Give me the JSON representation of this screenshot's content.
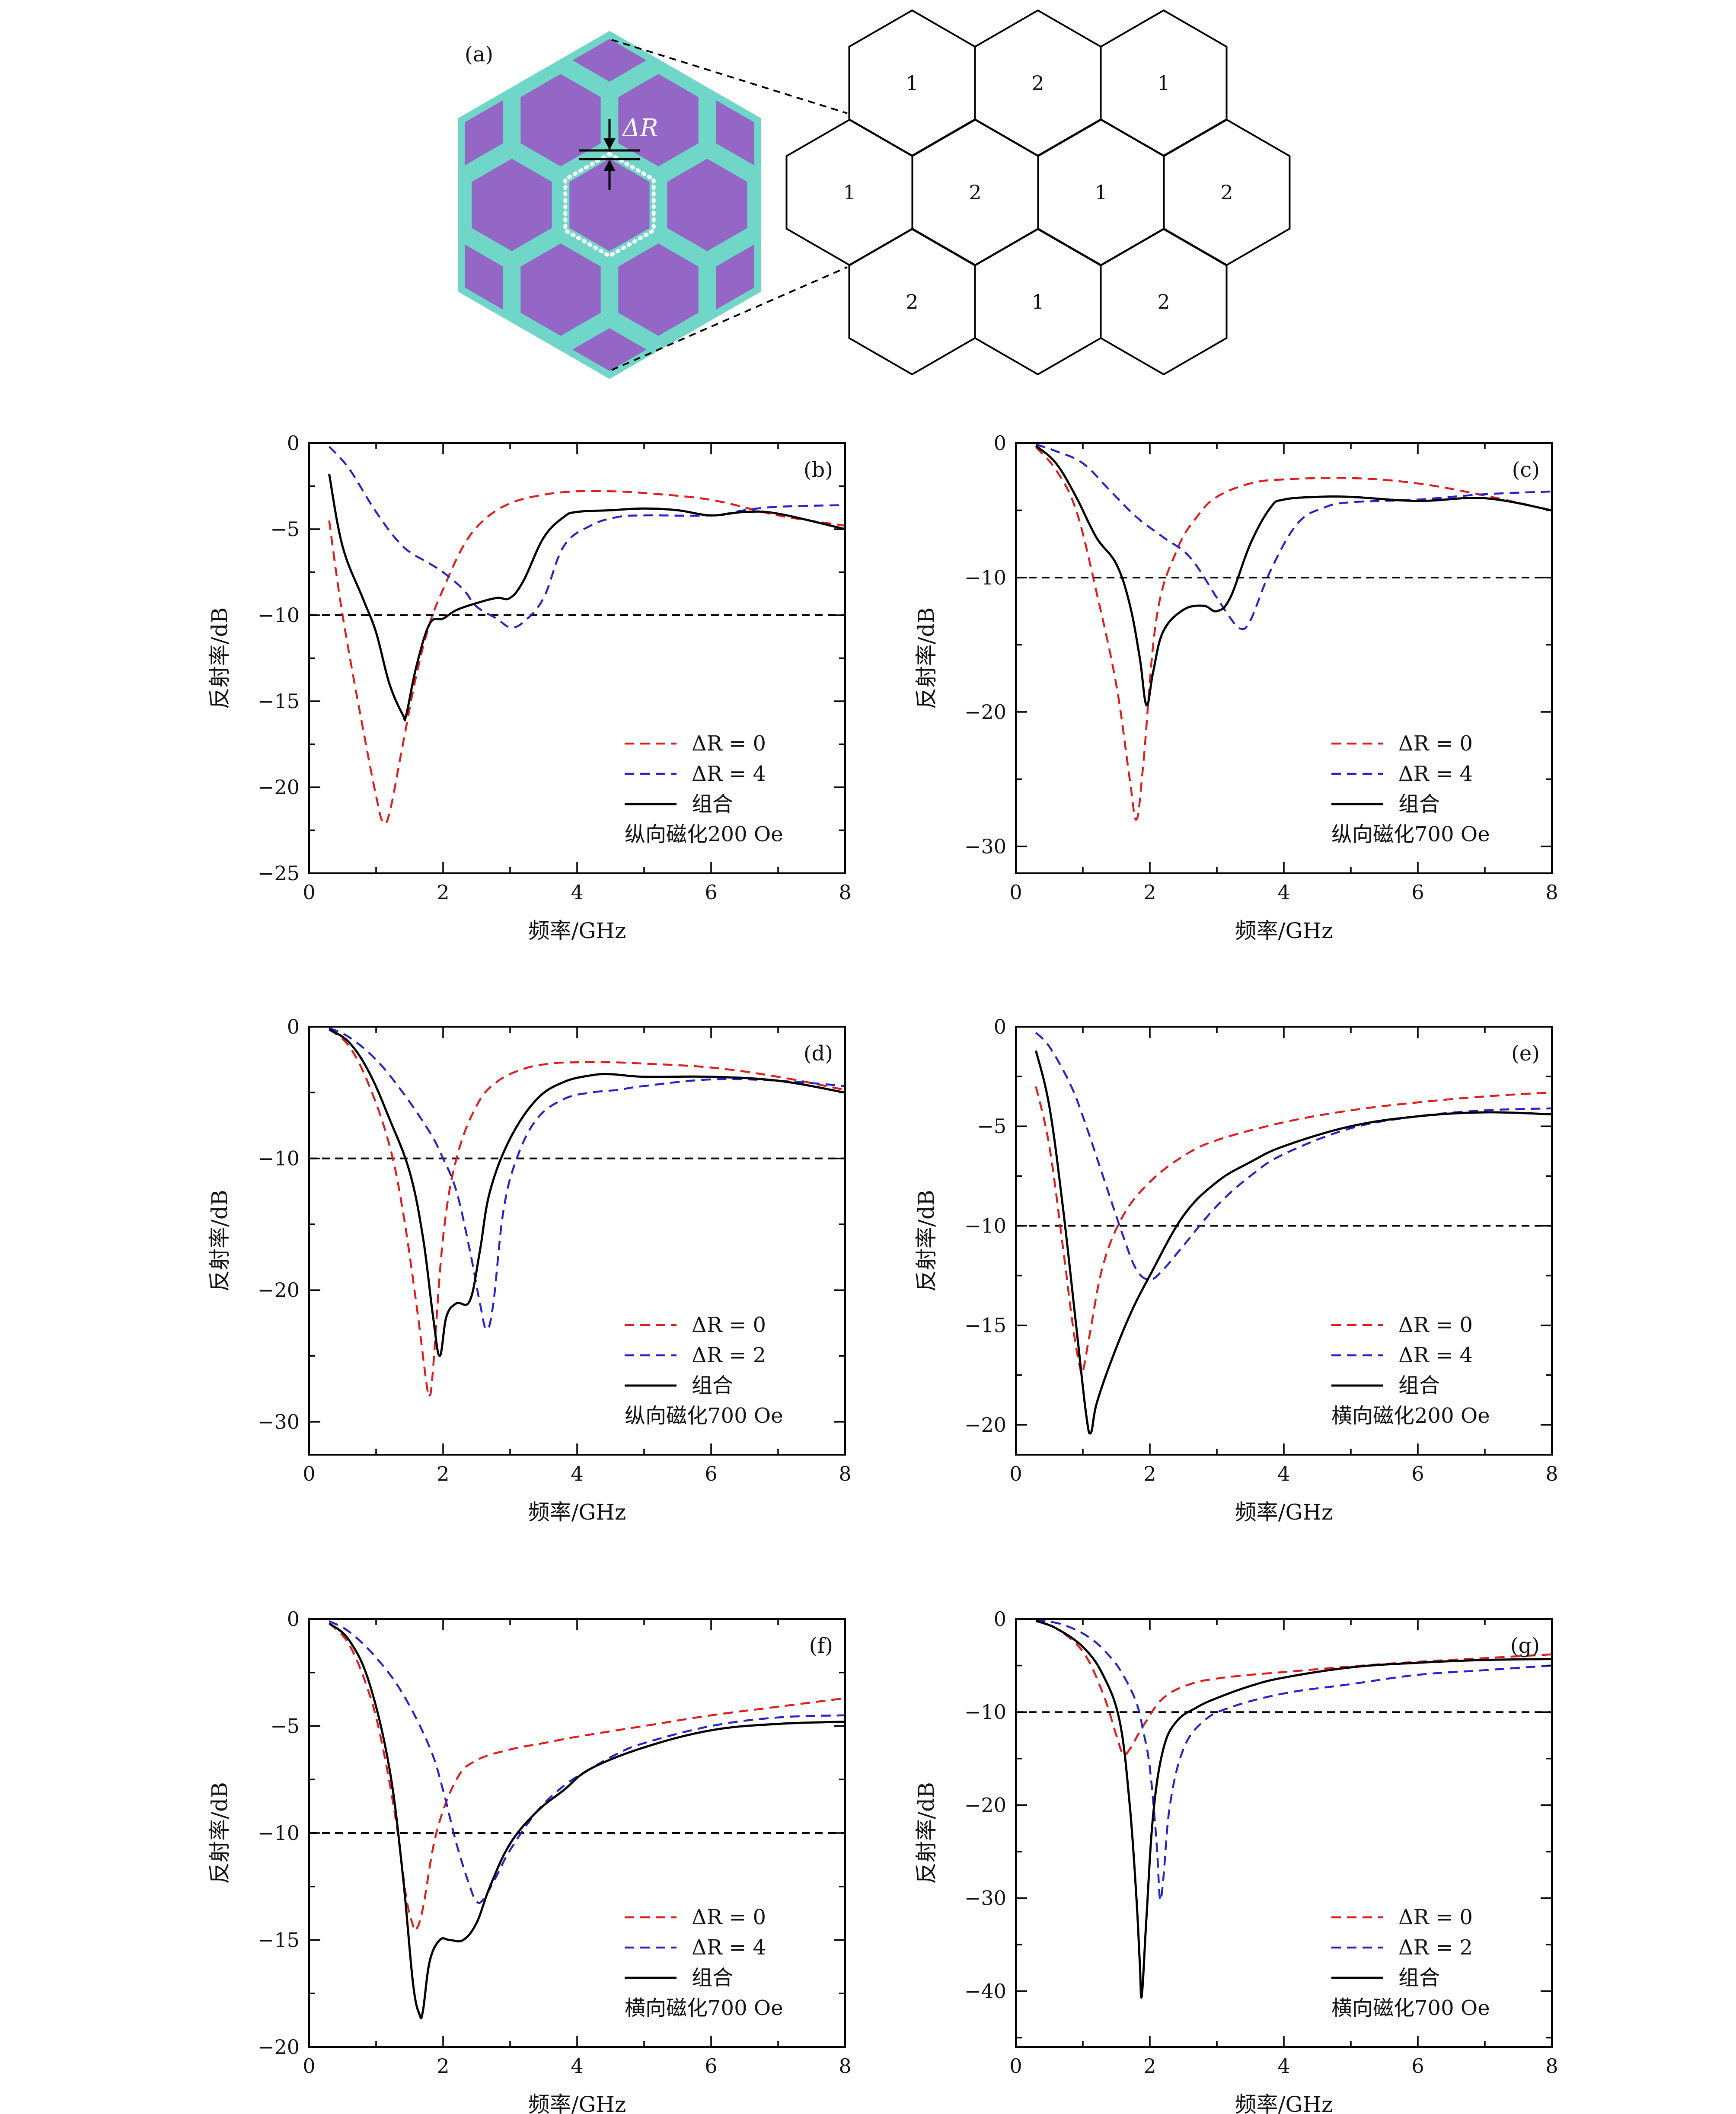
{
  "panel_a": {
    "label": "(a)",
    "delta_label": "ΔR",
    "colors": {
      "cell": "#9466c6",
      "frame": "#6fd6c8",
      "dots": "#ffffff"
    },
    "tiling": {
      "rows": [
        [
          "1",
          "2",
          "1"
        ],
        [
          "1",
          "2",
          "1",
          "2"
        ],
        [
          "2",
          "1",
          "2"
        ]
      ]
    }
  },
  "chart_data": [
    {
      "type": "line",
      "panel": "(b)",
      "xlabel": "频率/GHz",
      "ylabel": "反射率/dB",
      "xlim": [
        0,
        8
      ],
      "ylim": [
        -25,
        0
      ],
      "xticks": [
        0,
        2,
        4,
        6,
        8
      ],
      "yticks": [
        0,
        -5,
        -10,
        -15,
        -20,
        -25
      ],
      "threshold": -10,
      "condition": "纵向磁化200 Oe",
      "legend_position": "bottom-right",
      "series": [
        {
          "name": "ΔR = 0",
          "color": "#e01b1b",
          "dash": true,
          "x": [
            0.3,
            0.5,
            0.8,
            1.0,
            1.1,
            1.2,
            1.4,
            1.6,
            1.8,
            2.0,
            2.3,
            2.6,
            3.0,
            3.5,
            4.0,
            4.5,
            5.0,
            6.0,
            7.0,
            8.0
          ],
          "y": [
            -4.5,
            -10,
            -16.5,
            -20.5,
            -22,
            -21.5,
            -17.5,
            -13.5,
            -10.5,
            -8.5,
            -6,
            -4.5,
            -3.5,
            -3.0,
            -2.8,
            -2.8,
            -2.9,
            -3.3,
            -4.2,
            -4.8
          ]
        },
        {
          "name": "ΔR = 4",
          "color": "#2323cc",
          "dash": true,
          "x": [
            0.3,
            0.6,
            1.0,
            1.4,
            1.8,
            2.0,
            2.3,
            2.5,
            2.8,
            3.0,
            3.2,
            3.5,
            3.8,
            4.2,
            4.6,
            5.0,
            6.0,
            6.5,
            7.0,
            8.0
          ],
          "y": [
            -0.2,
            -1.5,
            -4,
            -6,
            -7,
            -7.5,
            -8.5,
            -9.5,
            -10.2,
            -10.7,
            -10.4,
            -9,
            -6,
            -4.8,
            -4.3,
            -4.2,
            -4.2,
            -3.9,
            -3.7,
            -3.6
          ]
        },
        {
          "name": "组合",
          "color": "#000000",
          "dash": false,
          "x": [
            0.3,
            0.5,
            0.8,
            1.0,
            1.2,
            1.4,
            1.45,
            1.6,
            1.8,
            2.0,
            2.2,
            2.5,
            2.8,
            3.0,
            3.2,
            3.5,
            3.8,
            4.0,
            4.5,
            5.0,
            5.5,
            6.0,
            6.5,
            7.0,
            8.0
          ],
          "y": [
            -1.8,
            -6,
            -9,
            -11,
            -14,
            -15.8,
            -15.8,
            -13,
            -10.5,
            -10.2,
            -9.7,
            -9.3,
            -9.0,
            -9.0,
            -8,
            -5.5,
            -4.3,
            -4.0,
            -3.9,
            -3.8,
            -3.9,
            -4.2,
            -4.0,
            -4.1,
            -5.0
          ]
        }
      ]
    },
    {
      "type": "line",
      "panel": "(c)",
      "xlabel": "频率/GHz",
      "ylabel": "反射率/dB",
      "xlim": [
        0,
        8
      ],
      "ylim": [
        -32,
        0
      ],
      "xticks": [
        0,
        2,
        4,
        6,
        8
      ],
      "yticks": [
        0,
        -10,
        -20,
        -30
      ],
      "threshold": -10,
      "condition": "纵向磁化700 Oe",
      "legend_position": "bottom-right",
      "series": [
        {
          "name": "ΔR = 0",
          "color": "#e01b1b",
          "dash": true,
          "x": [
            0.3,
            0.6,
            0.9,
            1.2,
            1.5,
            1.7,
            1.8,
            1.9,
            2.1,
            2.4,
            2.7,
            3.0,
            3.5,
            4.0,
            5.0,
            6.0,
            7.0,
            8.0
          ],
          "y": [
            -0.3,
            -2,
            -5,
            -11,
            -18,
            -25,
            -28,
            -24,
            -13,
            -8,
            -5.5,
            -4,
            -3,
            -2.7,
            -2.6,
            -3.0,
            -3.9,
            -5.0
          ]
        },
        {
          "name": "ΔR = 4",
          "color": "#2323cc",
          "dash": true,
          "x": [
            0.3,
            0.6,
            1.0,
            1.4,
            1.8,
            2.2,
            2.6,
            3.0,
            3.2,
            3.35,
            3.5,
            3.8,
            4.2,
            4.6,
            5.0,
            6.0,
            7.0,
            8.0
          ],
          "y": [
            -0.1,
            -0.6,
            -1.5,
            -3.5,
            -5.5,
            -7,
            -8.5,
            -11.5,
            -13,
            -13.8,
            -13.2,
            -9.5,
            -6,
            -4.8,
            -4.4,
            -4.2,
            -3.8,
            -3.6
          ]
        },
        {
          "name": "组合",
          "color": "#000000",
          "dash": false,
          "x": [
            0.3,
            0.6,
            0.9,
            1.2,
            1.5,
            1.7,
            1.85,
            1.95,
            2.05,
            2.2,
            2.5,
            2.8,
            3.0,
            3.2,
            3.5,
            3.8,
            4.0,
            4.5,
            5.0,
            6.0,
            7.0,
            8.0
          ],
          "y": [
            -0.2,
            -1.5,
            -4,
            -7,
            -9,
            -12,
            -16,
            -19.5,
            -17,
            -14,
            -12.4,
            -12.1,
            -12.5,
            -11.5,
            -7.5,
            -4.8,
            -4.2,
            -4.0,
            -4.0,
            -4.3,
            -4.1,
            -5.0
          ]
        }
      ]
    },
    {
      "type": "line",
      "panel": "(d)",
      "xlabel": "频率/GHz",
      "ylabel": "反射率/dB",
      "xlim": [
        0,
        8
      ],
      "ylim": [
        -32.5,
        0
      ],
      "xticks": [
        0,
        2,
        4,
        6,
        8
      ],
      "yticks": [
        0,
        -10,
        -20,
        -30
      ],
      "threshold": -10,
      "condition": "纵向磁化700 Oe",
      "legend_position": "bottom-right",
      "series": [
        {
          "name": "ΔR = 0",
          "color": "#e01b1b",
          "dash": true,
          "x": [
            0.3,
            0.6,
            0.9,
            1.2,
            1.4,
            1.6,
            1.75,
            1.8,
            1.85,
            2.0,
            2.2,
            2.5,
            2.8,
            3.2,
            3.6,
            4.0,
            4.5,
            5.0,
            6.0,
            7.0,
            8.0
          ],
          "y": [
            -0.2,
            -1.5,
            -4.5,
            -9,
            -14,
            -21,
            -27,
            -28,
            -26,
            -16,
            -10,
            -6,
            -4.2,
            -3.2,
            -2.8,
            -2.7,
            -2.7,
            -2.8,
            -3.1,
            -3.8,
            -4.8
          ]
        },
        {
          "name": "ΔR = 2",
          "color": "#2323cc",
          "dash": true,
          "x": [
            0.3,
            0.6,
            1.0,
            1.4,
            1.8,
            2.0,
            2.2,
            2.4,
            2.55,
            2.65,
            2.75,
            2.9,
            3.1,
            3.4,
            3.8,
            4.2,
            4.6,
            5.0,
            6.0,
            7.0,
            8.0
          ],
          "y": [
            -0.1,
            -0.8,
            -2.5,
            -5,
            -8,
            -10,
            -12.5,
            -17,
            -21,
            -23,
            -21,
            -14,
            -10,
            -7,
            -5.5,
            -5,
            -4.8,
            -4.5,
            -4.0,
            -4.1,
            -4.5
          ]
        },
        {
          "name": "组合",
          "color": "#000000",
          "dash": false,
          "x": [
            0.3,
            0.6,
            0.9,
            1.2,
            1.5,
            1.7,
            1.85,
            1.95,
            2.05,
            2.2,
            2.4,
            2.55,
            2.7,
            3.0,
            3.4,
            3.8,
            4.2,
            4.5,
            5.0,
            6.0,
            7.0,
            8.0
          ],
          "y": [
            -0.2,
            -1.2,
            -3.5,
            -7,
            -11,
            -16,
            -22,
            -25,
            -22,
            -21,
            -20.8,
            -17,
            -12.5,
            -8.5,
            -5.5,
            -4.2,
            -3.7,
            -3.6,
            -3.8,
            -3.8,
            -4.1,
            -5.0
          ]
        }
      ]
    },
    {
      "type": "line",
      "panel": "(e)",
      "xlabel": "频率/GHz",
      "ylabel": "反射率/dB",
      "xlim": [
        0,
        8
      ],
      "ylim": [
        -21.5,
        0
      ],
      "xticks": [
        0,
        2,
        4,
        6,
        8
      ],
      "yticks": [
        0,
        -5,
        -10,
        -15,
        -20
      ],
      "threshold": -10,
      "condition": "横向磁化200 Oe",
      "legend_position": "bottom-right",
      "series": [
        {
          "name": "ΔR = 0",
          "color": "#e01b1b",
          "dash": true,
          "x": [
            0.3,
            0.5,
            0.7,
            0.85,
            0.95,
            1.0,
            1.1,
            1.3,
            1.6,
            2.0,
            2.5,
            3.0,
            4.0,
            5.0,
            6.0,
            7.0,
            8.0
          ],
          "y": [
            -3,
            -6,
            -11,
            -15,
            -17,
            -17.3,
            -15.5,
            -12,
            -9.5,
            -7.8,
            -6.5,
            -5.7,
            -4.8,
            -4.2,
            -3.8,
            -3.5,
            -3.3
          ]
        },
        {
          "name": "ΔR = 4",
          "color": "#2323cc",
          "dash": true,
          "x": [
            0.3,
            0.5,
            0.8,
            1.0,
            1.3,
            1.6,
            1.8,
            2.0,
            2.2,
            2.5,
            3.0,
            3.5,
            4.0,
            5.0,
            6.0,
            7.0,
            8.0
          ],
          "y": [
            -0.3,
            -1,
            -2.8,
            -4.5,
            -7.5,
            -10.5,
            -12.2,
            -12.7,
            -12.2,
            -11,
            -9,
            -7.5,
            -6.4,
            -5.1,
            -4.5,
            -4.2,
            -4.1
          ]
        },
        {
          "name": "组合",
          "color": "#000000",
          "dash": false,
          "x": [
            0.3,
            0.5,
            0.7,
            0.9,
            1.05,
            1.12,
            1.2,
            1.4,
            1.7,
            2.0,
            2.5,
            3.0,
            3.5,
            4.0,
            5.0,
            6.0,
            7.0,
            8.0
          ],
          "y": [
            -1.2,
            -4,
            -9,
            -15,
            -19.5,
            -20.4,
            -19,
            -17,
            -14.5,
            -12.5,
            -9.5,
            -7.8,
            -6.8,
            -6,
            -5,
            -4.5,
            -4.3,
            -4.4
          ]
        }
      ]
    },
    {
      "type": "line",
      "panel": "(f)",
      "xlabel": "频率/GHz",
      "ylabel": "反射率/dB",
      "xlim": [
        0,
        8
      ],
      "ylim": [
        -20,
        0
      ],
      "xticks": [
        0,
        2,
        4,
        6,
        8
      ],
      "yticks": [
        0,
        -5,
        -10,
        -15,
        -20
      ],
      "threshold": -10,
      "condition": "横向磁化700 Oe",
      "legend_position": "bottom-right",
      "series": [
        {
          "name": "ΔR = 0",
          "color": "#e01b1b",
          "dash": true,
          "x": [
            0.3,
            0.6,
            0.9,
            1.1,
            1.3,
            1.45,
            1.55,
            1.6,
            1.7,
            1.9,
            2.2,
            2.5,
            3.0,
            3.5,
            4.0,
            5.0,
            6.0,
            7.0,
            8.0
          ],
          "y": [
            -0.2,
            -1.2,
            -3.5,
            -6,
            -9.5,
            -13,
            -14.3,
            -14.5,
            -13.5,
            -10,
            -7.5,
            -6.6,
            -6.1,
            -5.8,
            -5.5,
            -5.0,
            -4.5,
            -4.1,
            -3.7
          ]
        },
        {
          "name": "ΔR = 4",
          "color": "#2323cc",
          "dash": true,
          "x": [
            0.3,
            0.6,
            1.0,
            1.4,
            1.8,
            2.0,
            2.2,
            2.4,
            2.5,
            2.6,
            2.8,
            3.0,
            3.4,
            3.8,
            4.2,
            4.6,
            5.0,
            6.0,
            7.0,
            8.0
          ],
          "y": [
            -0.1,
            -0.6,
            -1.8,
            -3.5,
            -6,
            -8,
            -10.5,
            -12.5,
            -13.2,
            -13.1,
            -12,
            -10.8,
            -9,
            -7.8,
            -7.0,
            -6.3,
            -5.8,
            -5.0,
            -4.6,
            -4.5
          ]
        },
        {
          "name": "组合",
          "color": "#000000",
          "dash": false,
          "x": [
            0.3,
            0.6,
            0.9,
            1.2,
            1.4,
            1.55,
            1.65,
            1.7,
            1.8,
            1.95,
            2.1,
            2.3,
            2.5,
            2.7,
            3.0,
            3.4,
            3.8,
            4.2,
            5.0,
            6.0,
            7.0,
            8.0
          ],
          "y": [
            -0.2,
            -1,
            -3,
            -7,
            -12,
            -17,
            -18.5,
            -18.3,
            -16,
            -15,
            -15,
            -15,
            -14.2,
            -12.5,
            -10.5,
            -9,
            -8,
            -7,
            -6,
            -5.2,
            -4.9,
            -4.8
          ]
        }
      ]
    },
    {
      "type": "line",
      "panel": "(g)",
      "xlabel": "频率/GHz",
      "ylabel": "反射率/dB",
      "xlim": [
        0,
        8
      ],
      "ylim": [
        -46,
        0
      ],
      "xticks": [
        0,
        2,
        4,
        6,
        8
      ],
      "yticks": [
        0,
        -10,
        -20,
        -30,
        -40
      ],
      "threshold": -10,
      "condition": "横向磁化700 Oe",
      "legend_position": "bottom-right",
      "series": [
        {
          "name": "ΔR = 0",
          "color": "#e01b1b",
          "dash": true,
          "x": [
            0.3,
            0.6,
            1.0,
            1.3,
            1.5,
            1.6,
            1.7,
            1.9,
            2.2,
            2.6,
            3.0,
            3.5,
            4.0,
            5.0,
            6.0,
            7.0,
            8.0
          ],
          "y": [
            -0.2,
            -1,
            -3.5,
            -8,
            -12.5,
            -14.5,
            -14,
            -11.5,
            -8.5,
            -7,
            -6.4,
            -6,
            -5.7,
            -5.1,
            -4.6,
            -4.2,
            -3.8
          ]
        },
        {
          "name": "ΔR = 2",
          "color": "#2323cc",
          "dash": true,
          "x": [
            0.3,
            0.7,
            1.1,
            1.4,
            1.6,
            1.8,
            1.9,
            2.0,
            2.1,
            2.15,
            2.2,
            2.3,
            2.5,
            2.8,
            3.2,
            4.0,
            5.0,
            6.0,
            7.0,
            8.0
          ],
          "y": [
            -0.1,
            -0.6,
            -2,
            -4,
            -6,
            -9,
            -12,
            -16,
            -24,
            -30,
            -28,
            -20,
            -14,
            -11,
            -9.5,
            -8,
            -7,
            -6,
            -5.5,
            -5.0
          ]
        },
        {
          "name": "组合",
          "color": "#000000",
          "dash": false,
          "x": [
            0.3,
            0.6,
            1.0,
            1.3,
            1.55,
            1.7,
            1.8,
            1.85,
            1.88,
            1.95,
            2.05,
            2.2,
            2.4,
            2.7,
            3.0,
            3.5,
            4.0,
            5.0,
            6.0,
            7.0,
            8.0
          ],
          "y": [
            -0.2,
            -1,
            -3,
            -6,
            -11,
            -20,
            -30,
            -37,
            -40.5,
            -32,
            -21,
            -14,
            -11,
            -9.5,
            -8.5,
            -7.2,
            -6.3,
            -5.2,
            -4.7,
            -4.4,
            -4.3
          ]
        }
      ]
    }
  ]
}
